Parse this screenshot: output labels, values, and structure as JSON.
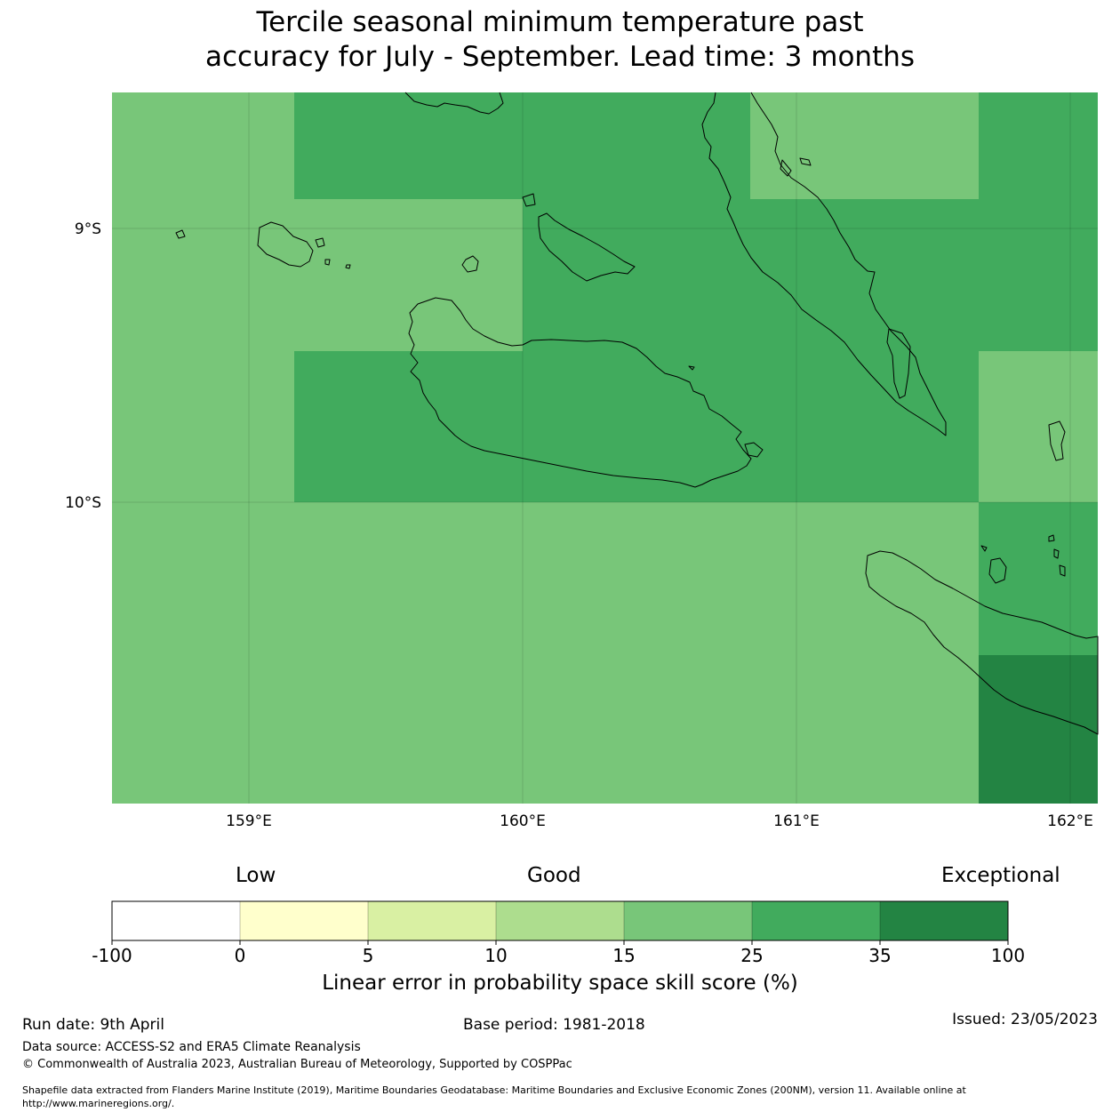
{
  "title": {
    "line1": "Tercile seasonal minimum temperature past",
    "line2": "accuracy for July - September. Lead time: 3 months"
  },
  "map": {
    "lon_ticks": [
      "159°E",
      "160°E",
      "161°E",
      "162°E"
    ],
    "lat_ticks": [
      "9°S",
      "10°S"
    ],
    "extent": {
      "lon": [
        158.5,
        162.1
      ],
      "lat": [
        -11.1,
        -8.5
      ]
    }
  },
  "legend": {
    "categories": {
      "low": "Low",
      "good": "Good",
      "exceptional": "Exceptional"
    },
    "boundaries": [
      "-100",
      "0",
      "5",
      "10",
      "15",
      "25",
      "35",
      "100"
    ],
    "colors": [
      "#ffffff",
      "#ffffcc",
      "#d9f0a3",
      "#addd8e",
      "#78c679",
      "#41ab5d",
      "#238443"
    ],
    "label": "Linear error in probability space skill score (%)"
  },
  "footer": {
    "run_date": "Run date: 9th April",
    "base_period": "Base period: 1981-2018",
    "issued": "Issued: 23/05/2023",
    "data_source": "Data source: ACCESS-S2 and ERA5 Climate Reanalysis",
    "copyright": "© Commonwealth of Australia 2023, Australian Bureau of Meteorology, Supported by COSPPac",
    "shapefile_line1": "Shapefile data extracted from Flanders Marine Institute (2019), Maritime Boundaries Geodatabase: Maritime Boundaries and Exclusive Economic Zones (200NM), version 11. Available online at",
    "shapefile_line2": "http://www.marineregions.org/."
  }
}
